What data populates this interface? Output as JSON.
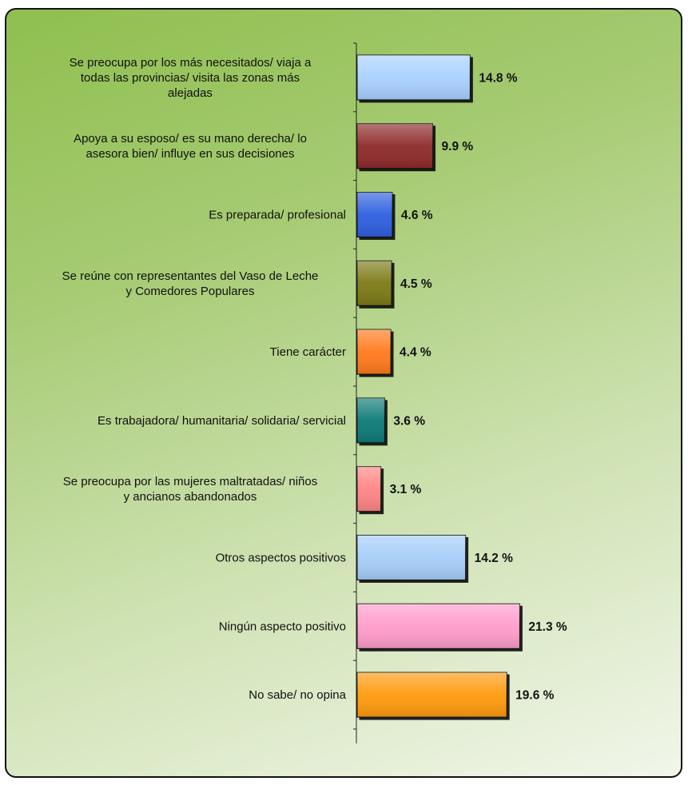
{
  "chart_data": {
    "type": "bar",
    "orientation": "horizontal",
    "categories": [
      [
        "Se preocupa por los más necesitados/ viaja a",
        "todas las provincias/ visita las zonas más",
        "alejadas"
      ],
      [
        "Apoya a su esposo/ es su mano derecha/ lo",
        "asesora bien/ influye en sus decisiones"
      ],
      [
        "Es preparada/ profesional"
      ],
      [
        "Se reúne con representantes del Vaso de Leche",
        "y Comedores Populares"
      ],
      [
        "Tiene carácter"
      ],
      [
        "Es trabajadora/ humanitaria/ solidaria/ servicial"
      ],
      [
        "Se preocupa por las mujeres maltratadas/ niños",
        "y ancianos abandonados"
      ],
      [
        "Otros aspectos positivos"
      ],
      [
        "Ningún aspecto positivo"
      ],
      [
        "No sabe/ no opina"
      ]
    ],
    "values": [
      14.8,
      9.9,
      4.6,
      4.5,
      4.4,
      3.6,
      3.1,
      14.2,
      21.3,
      19.6
    ],
    "value_labels": [
      "14.8 %",
      "9.9 %",
      "4.6 %",
      "4.5 %",
      "4.4 %",
      "3.6 %",
      "3.1 %",
      "14.2 %",
      "21.3 %",
      "19.6 %"
    ],
    "colors": [
      "#a8d0ff",
      "#8e2a2a",
      "#2f5fe0",
      "#7c7a14",
      "#ff7a1f",
      "#0d7a78",
      "#ff8484",
      "#a6cdf8",
      "#ff9ccb",
      "#ff9a0a"
    ],
    "title": "",
    "xlabel": "",
    "ylabel": "",
    "grid": false,
    "legend": "none"
  }
}
